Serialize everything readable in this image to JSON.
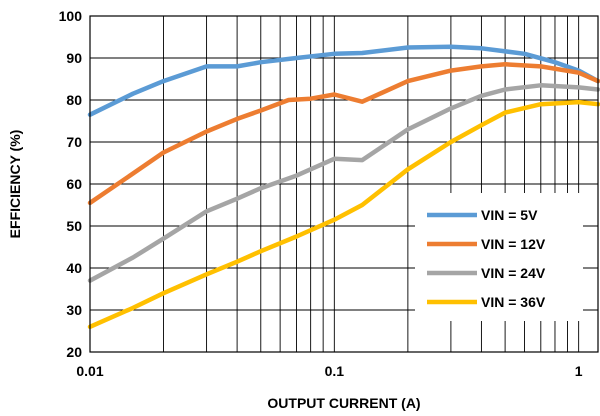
{
  "chart_data": {
    "type": "line",
    "title": "",
    "xlabel": "OUTPUT CURRENT (A)",
    "ylabel": "EFFICIENCY (%)",
    "x_scale": "log",
    "xlim": [
      0.01,
      1.2
    ],
    "ylim": [
      20,
      100
    ],
    "x_ticks": [
      {
        "value": 0.01,
        "label": "0.01"
      },
      {
        "value": 0.1,
        "label": "0.1"
      },
      {
        "value": 1,
        "label": "1"
      }
    ],
    "y_ticks": [
      {
        "value": 20,
        "label": "20"
      },
      {
        "value": 30,
        "label": "30"
      },
      {
        "value": 40,
        "label": "40"
      },
      {
        "value": 50,
        "label": "50"
      },
      {
        "value": 60,
        "label": "60"
      },
      {
        "value": 70,
        "label": "70"
      },
      {
        "value": 80,
        "label": "80"
      },
      {
        "value": 90,
        "label": "90"
      },
      {
        "value": 100,
        "label": "100"
      }
    ],
    "grid": true,
    "legend_position": "bottom-right",
    "series": [
      {
        "name": "VIN = 5V",
        "color": "#5B9BD5",
        "points": [
          [
            0.01,
            76.5
          ],
          [
            0.015,
            81.5
          ],
          [
            0.02,
            84.5
          ],
          [
            0.03,
            88
          ],
          [
            0.04,
            88
          ],
          [
            0.05,
            89
          ],
          [
            0.07,
            90
          ],
          [
            0.1,
            91
          ],
          [
            0.13,
            91.2
          ],
          [
            0.2,
            92.5
          ],
          [
            0.3,
            92.7
          ],
          [
            0.4,
            92.3
          ],
          [
            0.6,
            91
          ],
          [
            0.8,
            89
          ],
          [
            1,
            87
          ],
          [
            1.2,
            84.5
          ]
        ]
      },
      {
        "name": "VIN = 12V",
        "color": "#ED7D31",
        "points": [
          [
            0.01,
            55.5
          ],
          [
            0.015,
            62.5
          ],
          [
            0.02,
            67.5
          ],
          [
            0.03,
            72.5
          ],
          [
            0.04,
            75.5
          ],
          [
            0.05,
            77.5
          ],
          [
            0.065,
            80
          ],
          [
            0.08,
            80.3
          ],
          [
            0.1,
            81.3
          ],
          [
            0.13,
            79.6
          ],
          [
            0.2,
            84.5
          ],
          [
            0.3,
            87
          ],
          [
            0.4,
            88
          ],
          [
            0.5,
            88.5
          ],
          [
            0.7,
            88
          ],
          [
            1,
            86.5
          ],
          [
            1.2,
            84.5
          ]
        ]
      },
      {
        "name": "VIN = 24V",
        "color": "#A5A5A5",
        "points": [
          [
            0.01,
            37
          ],
          [
            0.015,
            42.5
          ],
          [
            0.02,
            47
          ],
          [
            0.03,
            53.5
          ],
          [
            0.04,
            56.5
          ],
          [
            0.05,
            59
          ],
          [
            0.07,
            62
          ],
          [
            0.1,
            66
          ],
          [
            0.13,
            65.7
          ],
          [
            0.2,
            73
          ],
          [
            0.3,
            78
          ],
          [
            0.4,
            81
          ],
          [
            0.5,
            82.5
          ],
          [
            0.7,
            83.5
          ],
          [
            1,
            83
          ],
          [
            1.2,
            82.5
          ]
        ]
      },
      {
        "name": "VIN = 36V",
        "color": "#FFC000",
        "points": [
          [
            0.01,
            26
          ],
          [
            0.015,
            30.5
          ],
          [
            0.02,
            34
          ],
          [
            0.03,
            38.5
          ],
          [
            0.04,
            41.5
          ],
          [
            0.05,
            44
          ],
          [
            0.07,
            47.5
          ],
          [
            0.1,
            51.5
          ],
          [
            0.13,
            55
          ],
          [
            0.2,
            63.5
          ],
          [
            0.3,
            70
          ],
          [
            0.4,
            74
          ],
          [
            0.5,
            77
          ],
          [
            0.7,
            79
          ],
          [
            1,
            79.5
          ],
          [
            1.2,
            79
          ]
        ]
      }
    ]
  }
}
